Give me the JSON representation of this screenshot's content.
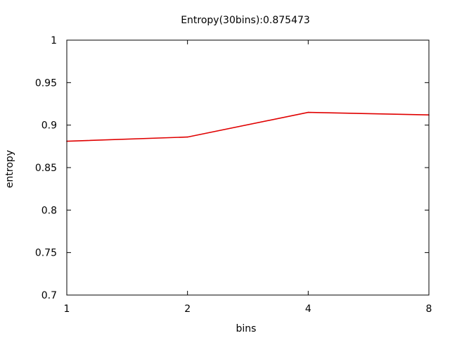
{
  "chart_data": {
    "type": "line",
    "title": "Entropy(30bins):0.875473",
    "xlabel": "bins",
    "ylabel": "entropy",
    "x_scale": "log2",
    "xlim": [
      1,
      8
    ],
    "ylim": [
      0.7,
      1.0
    ],
    "x_ticks": [
      "1",
      "2",
      "4",
      "8"
    ],
    "y_ticks": [
      "0.7",
      "0.75",
      "0.8",
      "0.85",
      "0.9",
      "0.95",
      "1"
    ],
    "grid": false,
    "series": [
      {
        "color": "#e00000",
        "x": [
          1,
          2,
          4,
          8
        ],
        "y": [
          0.881,
          0.886,
          0.915,
          0.912
        ]
      }
    ]
  }
}
